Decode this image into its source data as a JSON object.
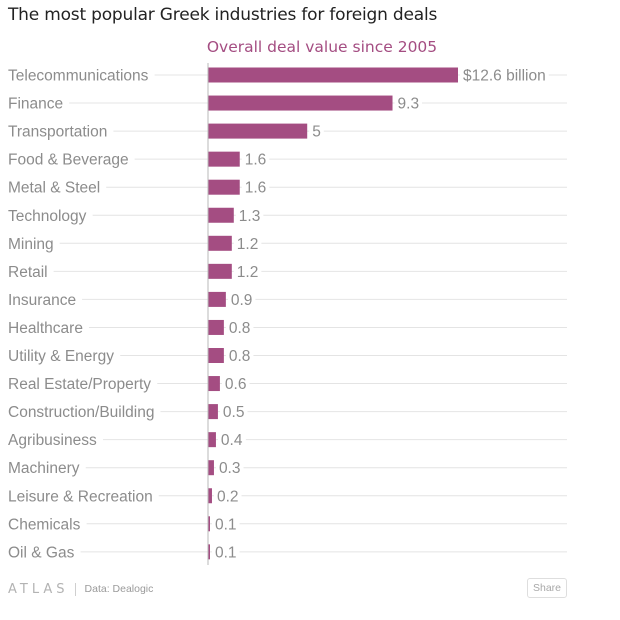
{
  "colors": {
    "bar": "#a44d82",
    "subtitle": "#a44d82",
    "label": "#8c8c8c",
    "gridline": "#e4e4e4",
    "axis": "#b9b9b9"
  },
  "footer": {
    "logo": "ATLAS",
    "source": "Data: Dealogic",
    "share_label": "Share"
  },
  "chart_data": {
    "type": "bar",
    "orientation": "horizontal",
    "title": "The most popular Greek industries for foreign deals",
    "subtitle": "Overall deal value since 2005",
    "categories": [
      "Telecommunications",
      "Finance",
      "Transportation",
      "Food & Beverage",
      "Metal & Steel",
      "Technology",
      "Mining",
      "Retail",
      "Insurance",
      "Healthcare",
      "Utility & Energy",
      "Real Estate/Property",
      "Construction/Building",
      "Agribusiness",
      "Machinery",
      "Leisure & Recreation",
      "Chemicals",
      "Oil & Gas"
    ],
    "values": [
      12.6,
      9.3,
      5,
      1.6,
      1.6,
      1.3,
      1.2,
      1.2,
      0.9,
      0.8,
      0.8,
      0.6,
      0.5,
      0.4,
      0.3,
      0.2,
      0.1,
      0.1
    ],
    "value_labels": [
      "$12.6 billion",
      "9.3",
      "5",
      "1.6",
      "1.6",
      "1.3",
      "1.2",
      "1.2",
      "0.9",
      "0.8",
      "0.8",
      "0.6",
      "0.5",
      "0.4",
      "0.3",
      "0.2",
      "0.1",
      "0.1"
    ],
    "xlim": [
      0,
      15
    ],
    "unit": "billion USD",
    "grid": true
  }
}
